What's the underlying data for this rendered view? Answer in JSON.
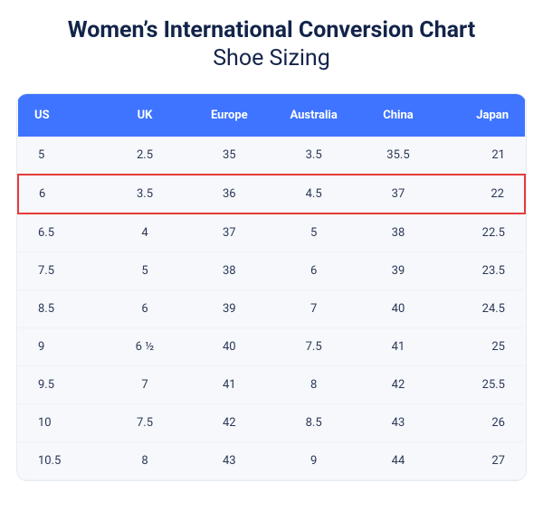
{
  "title": {
    "main": "Women’s International Conversion Chart",
    "sub": "Shoe Sizing"
  },
  "table": {
    "type": "table",
    "header_bg": "#3e74ff",
    "header_text_color": "#ffffff",
    "body_bg": "#f6f8fb",
    "border_color": "#e6ebf2",
    "row_divider_color": "#eef1f6",
    "cell_text_color": "#2a3756",
    "highlight_border_color": "#e63b3b",
    "header_fontsize": 13,
    "cell_fontsize": 13,
    "border_radius": 12,
    "highlight_row_index": 1,
    "columns": [
      "US",
      "UK",
      "Europe",
      "Australia",
      "China",
      "Japan"
    ],
    "rows": [
      [
        "5",
        "2.5",
        "35",
        "3.5",
        "35.5",
        "21"
      ],
      [
        "6",
        "3.5",
        "36",
        "4.5",
        "37",
        "22"
      ],
      [
        "6.5",
        "4",
        "37",
        "5",
        "38",
        "22.5"
      ],
      [
        "7.5",
        "5",
        "38",
        "6",
        "39",
        "23.5"
      ],
      [
        "8.5",
        "6",
        "39",
        "7",
        "40",
        "24.5"
      ],
      [
        "9",
        "6 ½",
        "40",
        "7.5",
        "41",
        "25"
      ],
      [
        "9.5",
        "7",
        "41",
        "8",
        "42",
        "25.5"
      ],
      [
        "10",
        "7.5",
        "42",
        "8.5",
        "43",
        "26"
      ],
      [
        "10.5",
        "8",
        "43",
        "9",
        "44",
        "27"
      ]
    ]
  }
}
